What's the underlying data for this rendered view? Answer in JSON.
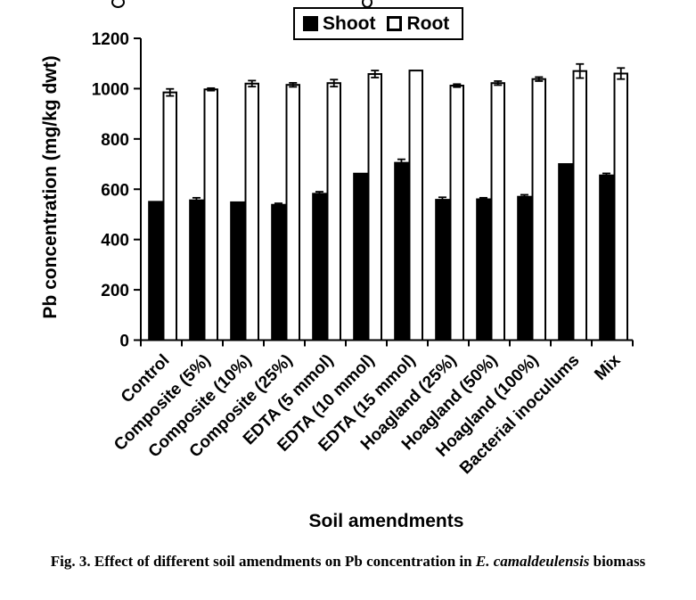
{
  "caption": {
    "prefix": "Fig. 3. Effect of different soil amendments on Pb concentration in ",
    "species": "E. camaldeulensis",
    "suffix": " biomass"
  },
  "chart_data": {
    "type": "bar",
    "title": "",
    "xlabel": "Soil amendments",
    "ylabel": "Pb concentration (mg/kg dwt)",
    "ylim": [
      0,
      1200
    ],
    "ytick_step": 200,
    "grid": false,
    "legend_position": "top-center",
    "x_tick_label_rotation_deg": -45,
    "categories": [
      "Control",
      "Composite (5%)",
      "Composite (10%)",
      "Composite (25%)",
      "EDTA (5 mmol)",
      "EDTA (10 mmol)",
      "EDTA (15 mmol)",
      "Hoagland (25%)",
      "Hoagland (50%)",
      "Hoagland (100%)",
      "Bacterial inoculums",
      "Mix"
    ],
    "series": [
      {
        "name": "Shoot",
        "fill": "#000000",
        "stroke": "#000000",
        "values": [
          550,
          556,
          548,
          538,
          582,
          662,
          705,
          558,
          560,
          570,
          700,
          655
        ],
        "errors": [
          0,
          10,
          0,
          6,
          8,
          0,
          14,
          10,
          6,
          8,
          0,
          8
        ]
      },
      {
        "name": "Root",
        "fill": "#ffffff",
        "stroke": "#000000",
        "values": [
          985,
          997,
          1020,
          1015,
          1022,
          1058,
          1072,
          1012,
          1022,
          1038,
          1070,
          1060
        ],
        "errors": [
          14,
          5,
          12,
          8,
          14,
          14,
          0,
          6,
          8,
          8,
          28,
          22
        ]
      }
    ],
    "colors": {
      "axis": "#000000",
      "error_bar": "#000000",
      "background": "#ffffff"
    }
  }
}
